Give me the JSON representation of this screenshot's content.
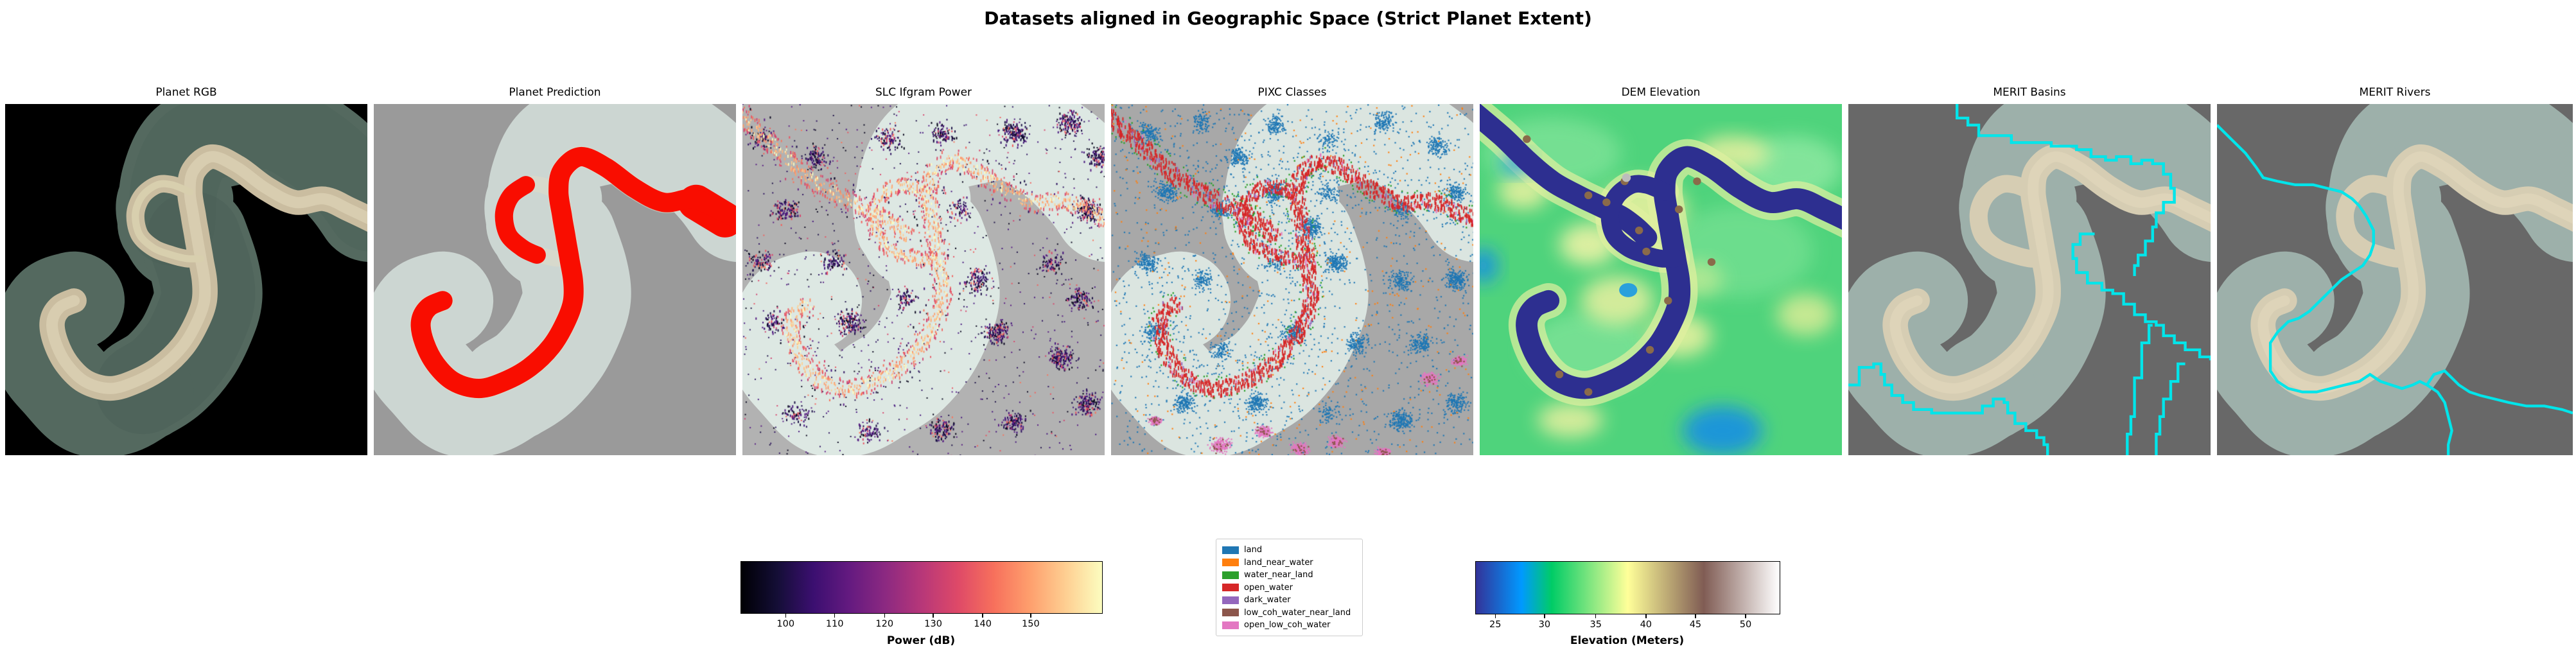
{
  "figure": {
    "title": "Datasets aligned in Geographic Space (Strict Planet Extent)",
    "background": "#ffffff"
  },
  "panels": [
    {
      "id": "planet-rgb",
      "title": "Planet RGB",
      "type": "rgb",
      "bg": "#000000",
      "swath": "#54695f",
      "river": "#cabda0",
      "river_core": "#d8cdb0"
    },
    {
      "id": "planet-prediction",
      "title": "Planet Prediction",
      "type": "prediction",
      "bg": "#9a9a9a",
      "swath": "#ccd6d2",
      "river": "#e2dbc6",
      "prediction_color": "#f90d00"
    },
    {
      "id": "slc-ifgram-power",
      "title": "SLC Ifgram Power",
      "type": "sar",
      "bg": "#b2b2b2",
      "swath": "#dde8e3"
    },
    {
      "id": "pixc-classes",
      "title": "PIXC Classes",
      "type": "pixc",
      "bg": "#a8a8a8",
      "swath": "#dbe5e0"
    },
    {
      "id": "dem-elevation",
      "title": "DEM Elevation",
      "type": "dem",
      "bg": "#4fd37c",
      "river_color": "#2d2f90",
      "bank_color": "#dff0a0",
      "water_patch": "#1f96d8"
    },
    {
      "id": "merit-basins",
      "title": "MERIT Basins",
      "type": "basins",
      "bg": "#686868",
      "swath": "#9db0aa",
      "river": "#d6cdb3",
      "line": "#00e5ea"
    },
    {
      "id": "merit-rivers",
      "title": "MERIT Rivers",
      "type": "rivers",
      "bg": "#686868",
      "swath": "#9db0aa",
      "river": "#d6cdb3",
      "line": "#00e5ea"
    }
  ],
  "colorbars": [
    {
      "label": "Power (dB)",
      "colormap": "magma",
      "ticks": [
        {
          "v": "100",
          "f": 0.125
        },
        {
          "v": "110",
          "f": 0.261
        },
        {
          "v": "120",
          "f": 0.399
        },
        {
          "v": "130",
          "f": 0.534
        },
        {
          "v": "140",
          "f": 0.671
        },
        {
          "v": "150",
          "f": 0.804
        }
      ],
      "stops": [
        "#000004",
        "#140e36",
        "#3b0f70",
        "#641a80",
        "#8c2981",
        "#b73779",
        "#de4968",
        "#f7705c",
        "#fe9f6d",
        "#fecf92",
        "#fcfdbf"
      ]
    },
    {
      "label": "Elevation (Meters)",
      "colormap": "terrain",
      "ticks": [
        {
          "v": "25",
          "f": 0.066
        },
        {
          "v": "30",
          "f": 0.228
        },
        {
          "v": "35",
          "f": 0.397
        },
        {
          "v": "40",
          "f": 0.562
        },
        {
          "v": "45",
          "f": 0.725
        },
        {
          "v": "50",
          "f": 0.89
        }
      ],
      "stops_pos": [
        {
          "c": "#333399",
          "p": 0
        },
        {
          "c": "#0099ff",
          "p": 15
        },
        {
          "c": "#00cc66",
          "p": 25
        },
        {
          "c": "#ffff99",
          "p": 50
        },
        {
          "c": "#805c54",
          "p": 75
        },
        {
          "c": "#ffffff",
          "p": 100
        }
      ]
    }
  ],
  "legend": {
    "items": [
      {
        "label": "land",
        "color": "#1f77b4"
      },
      {
        "label": "land_near_water",
        "color": "#ff7f0e"
      },
      {
        "label": "water_near_land",
        "color": "#2ca02c"
      },
      {
        "label": "open_water",
        "color": "#d62728"
      },
      {
        "label": "dark_water",
        "color": "#9467bd"
      },
      {
        "label": "low_coh_water_near_land",
        "color": "#8c564b"
      },
      {
        "label": "open_low_coh_water",
        "color": "#e377c2"
      }
    ]
  },
  "chart_data": {
    "type": "heatmap",
    "title": "Datasets aligned in Geographic Space (Strict Planet Extent)",
    "panels": [
      {
        "title": "Planet RGB",
        "content": "True-color satellite swath (S-shaped river corridor), tan meandering river with anabranch loop, black no-data background"
      },
      {
        "title": "Planet Prediction",
        "content": "Water prediction mask in red along river channel over pale swath, gray background"
      },
      {
        "title": "SLC Ifgram Power",
        "content": "Radar speckle in magma colors; bright cream/orange returns concentrated along river channels, purple/magenta clutter elsewhere"
      },
      {
        "title": "PIXC Classes",
        "content": "Classified point cloud: blue land speckle, red open_water band with green water_near_land edges along river, orange land_near_water, pink open_low_coh_water patches at bottom"
      },
      {
        "title": "DEM Elevation",
        "content": "Terrain-colormap elevation raster: dark blue river (lowest), green plains, yellow higher banks, brown spots, cyan-blue low patches"
      },
      {
        "title": "MERIT Basins",
        "content": "Cyan pixel-stepped basin boundary polylines over faint washed-out Planet swath on dark gray"
      },
      {
        "title": "MERIT Rivers",
        "content": "Cyan vector river centerlines tracing the meander over faint washed-out Planet swath on dark gray"
      }
    ],
    "colorbars": [
      {
        "label": "Power (dB)",
        "tick_values": [
          100,
          110,
          120,
          130,
          140,
          150
        ],
        "colormap": "magma"
      },
      {
        "label": "Elevation (Meters)",
        "tick_values": [
          25,
          30,
          35,
          40,
          45,
          50
        ],
        "colormap": "terrain"
      }
    ],
    "legend_entries": [
      "land",
      "land_near_water",
      "water_near_land",
      "open_water",
      "dark_water",
      "low_coh_water_near_land",
      "open_low_coh_water"
    ]
  }
}
